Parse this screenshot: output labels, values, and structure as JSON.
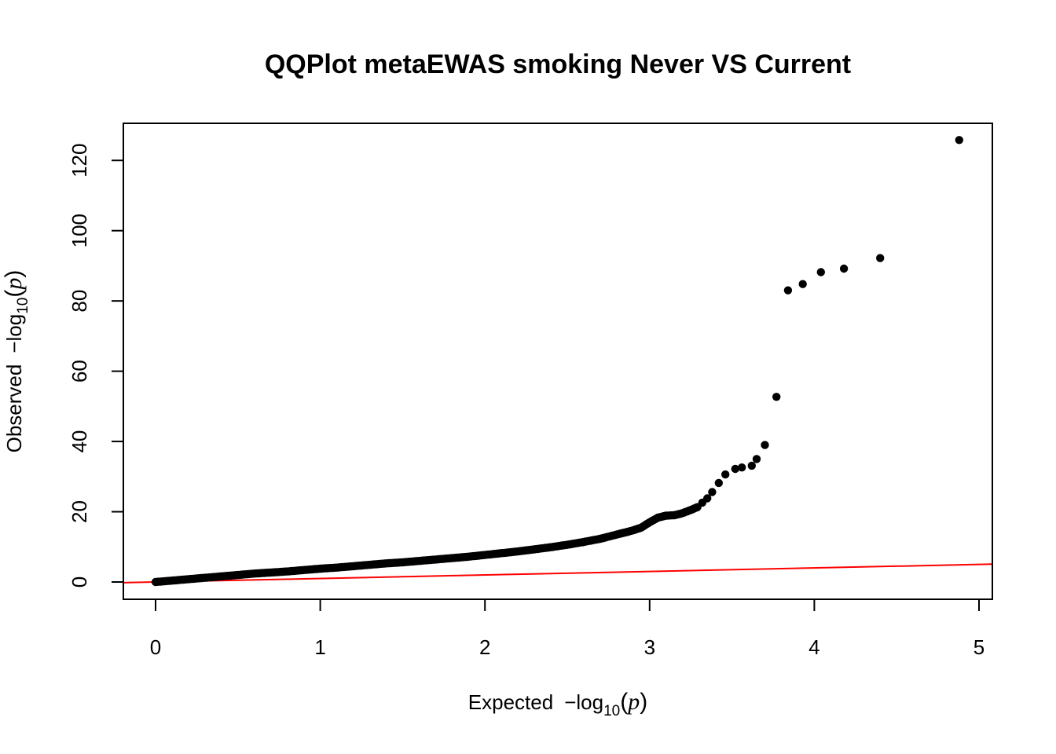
{
  "chart_data": {
    "type": "scatter",
    "title": "QQPlot metaEWAS smoking Never VS Current",
    "xlabel": {
      "prefix": "Expected",
      "minus": "−",
      "log": "log",
      "sub": "10",
      "open": "(",
      "var": "p",
      "close": ")"
    },
    "ylabel": {
      "prefix": "Observed",
      "minus": "−",
      "log": "log",
      "sub": "10",
      "open": "(",
      "var": "p",
      "close": ")"
    },
    "xlim": [
      0,
      5
    ],
    "ylim": [
      0,
      126
    ],
    "xticks": [
      0,
      1,
      2,
      3,
      4,
      5
    ],
    "xtick_labels": [
      "0",
      "1",
      "2",
      "3",
      "4",
      "5"
    ],
    "yticks": [
      0,
      20,
      40,
      60,
      80,
      100,
      120
    ],
    "ytick_labels": [
      "0",
      "20",
      "40",
      "60",
      "80",
      "100",
      "120"
    ],
    "reference_line": {
      "intercept": 0,
      "slope": 1,
      "color": "#ff0000"
    },
    "point_color": "#000000",
    "grid": false,
    "curve_points": [
      [
        0.0,
        0.0
      ],
      [
        0.1,
        0.4
      ],
      [
        0.2,
        0.8
      ],
      [
        0.3,
        1.2
      ],
      [
        0.4,
        1.6
      ],
      [
        0.5,
        2.0
      ],
      [
        0.6,
        2.4
      ],
      [
        0.7,
        2.7
      ],
      [
        0.8,
        3.0
      ],
      [
        0.9,
        3.4
      ],
      [
        1.0,
        3.8
      ],
      [
        1.1,
        4.1
      ],
      [
        1.2,
        4.5
      ],
      [
        1.3,
        4.9
      ],
      [
        1.4,
        5.3
      ],
      [
        1.5,
        5.6
      ],
      [
        1.6,
        6.0
      ],
      [
        1.7,
        6.4
      ],
      [
        1.8,
        6.8
      ],
      [
        1.9,
        7.2
      ],
      [
        2.0,
        7.7
      ],
      [
        2.1,
        8.2
      ],
      [
        2.2,
        8.7
      ],
      [
        2.3,
        9.3
      ],
      [
        2.4,
        9.9
      ],
      [
        2.5,
        10.6
      ],
      [
        2.6,
        11.4
      ],
      [
        2.7,
        12.3
      ],
      [
        2.8,
        13.5
      ],
      [
        2.9,
        14.7
      ],
      [
        2.95,
        15.5
      ],
      [
        3.0,
        17.0
      ],
      [
        3.05,
        18.3
      ],
      [
        3.1,
        18.9
      ],
      [
        3.15,
        19.0
      ],
      [
        3.2,
        19.6
      ],
      [
        3.25,
        20.5
      ],
      [
        3.3,
        21.5
      ]
    ],
    "points": [
      {
        "x": 3.32,
        "y": 22.6
      },
      {
        "x": 3.35,
        "y": 23.8
      },
      {
        "x": 3.38,
        "y": 25.6
      },
      {
        "x": 3.42,
        "y": 28.2
      },
      {
        "x": 3.46,
        "y": 30.6
      },
      {
        "x": 3.52,
        "y": 32.2
      },
      {
        "x": 3.56,
        "y": 32.6
      },
      {
        "x": 3.62,
        "y": 33.1
      },
      {
        "x": 3.65,
        "y": 35.0
      },
      {
        "x": 3.7,
        "y": 39.0
      },
      {
        "x": 3.77,
        "y": 52.7
      },
      {
        "x": 3.84,
        "y": 83.0
      },
      {
        "x": 3.93,
        "y": 84.8
      },
      {
        "x": 4.04,
        "y": 88.2
      },
      {
        "x": 4.18,
        "y": 89.2
      },
      {
        "x": 4.4,
        "y": 92.2
      },
      {
        "x": 4.88,
        "y": 125.8
      }
    ]
  }
}
